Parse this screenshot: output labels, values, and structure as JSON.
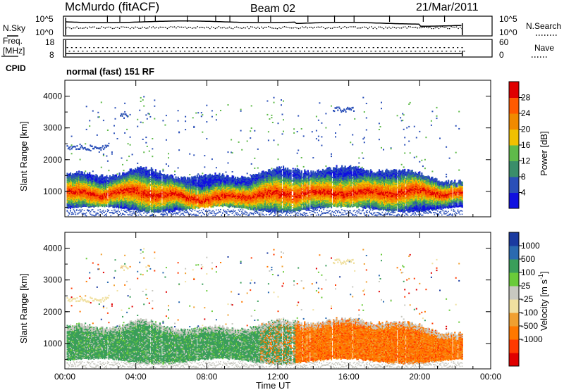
{
  "header": {
    "station": "McMurdo (fitACF)",
    "beam": "Beam 02",
    "date": "21/Mar/2011"
  },
  "top_panels": {
    "nsky": {
      "left_label": "N.Sky",
      "right_label": "N.Search",
      "left_ticks": [
        "10^5",
        "10^0"
      ],
      "right_ticks": [
        "10^5",
        "10^0"
      ]
    },
    "freq": {
      "left_label_1": "Freq.",
      "left_label_2": "[MHz]",
      "left_ticks": [
        "18",
        "8"
      ],
      "right_label": "Nave",
      "right_ticks": [
        "60",
        "0"
      ]
    },
    "cpid": {
      "label": "CPID",
      "value": "normal (fast) 151 RF"
    }
  },
  "chart_data": [
    {
      "type": "heatmap",
      "panel": "power",
      "ylabel": "Slant Range [km]",
      "ylim": [
        200,
        4500
      ],
      "yticks": [
        1000,
        2000,
        3000,
        4000
      ],
      "xlim": [
        "00:00",
        "24:00"
      ],
      "colorbar_label": "Power [dB]",
      "colorbar_ticks": [
        "28",
        "24",
        "20",
        "16",
        "12",
        "8",
        "4"
      ],
      "colorbar_colors": [
        "#1010e0",
        "#2a4fb8",
        "#3a8e6a",
        "#5fba4a",
        "#f0c000",
        "#f08a00",
        "#ff5a00",
        "#e00000"
      ],
      "approx_profile_hours": [
        0.1,
        2,
        4,
        6,
        8,
        10,
        12,
        14,
        16,
        18,
        20,
        22.4
      ],
      "approx_echo_center_km": [
        950,
        900,
        1000,
        850,
        750,
        850,
        900,
        950,
        950,
        950,
        1000,
        900
      ],
      "approx_echo_top_km": [
        1500,
        1500,
        1700,
        1500,
        1450,
        1500,
        1650,
        1700,
        1700,
        1700,
        1500,
        1300
      ]
    },
    {
      "type": "heatmap",
      "panel": "velocity",
      "ylabel": "Slant Range [km]",
      "ylim": [
        200,
        4500
      ],
      "yticks": [
        1000,
        2000,
        3000,
        4000
      ],
      "xlim": [
        "00:00",
        "24:00"
      ],
      "colorbar_label": "Velocity [m s^-1]",
      "colorbar_ticks": [
        "1000",
        "500",
        "100",
        "25",
        "-25",
        "-100",
        "-500",
        "-1000"
      ],
      "colorbar_colors": [
        "#e00000",
        "#ff3a00",
        "#ff7800",
        "#f0a030",
        "#f0e0a0",
        "#c8c8c0",
        "#6acb3a",
        "#3a9e5a",
        "#2a6ab0",
        "#1a3aa0"
      ],
      "dominant_velocity_before_hours": 11,
      "dominant_velocity_after_hours": 13
    }
  ],
  "xaxis": {
    "label": "Time UT",
    "ticks": [
      "00:00",
      "04:00",
      "08:00",
      "12:00",
      "16:00",
      "20:00",
      "00:00"
    ]
  },
  "legend_words": {
    "power_unit": "Power [dB]",
    "velocity_unit": "Velocity [m s",
    "velocity_sup": "-1",
    "velocity_close": "]"
  }
}
